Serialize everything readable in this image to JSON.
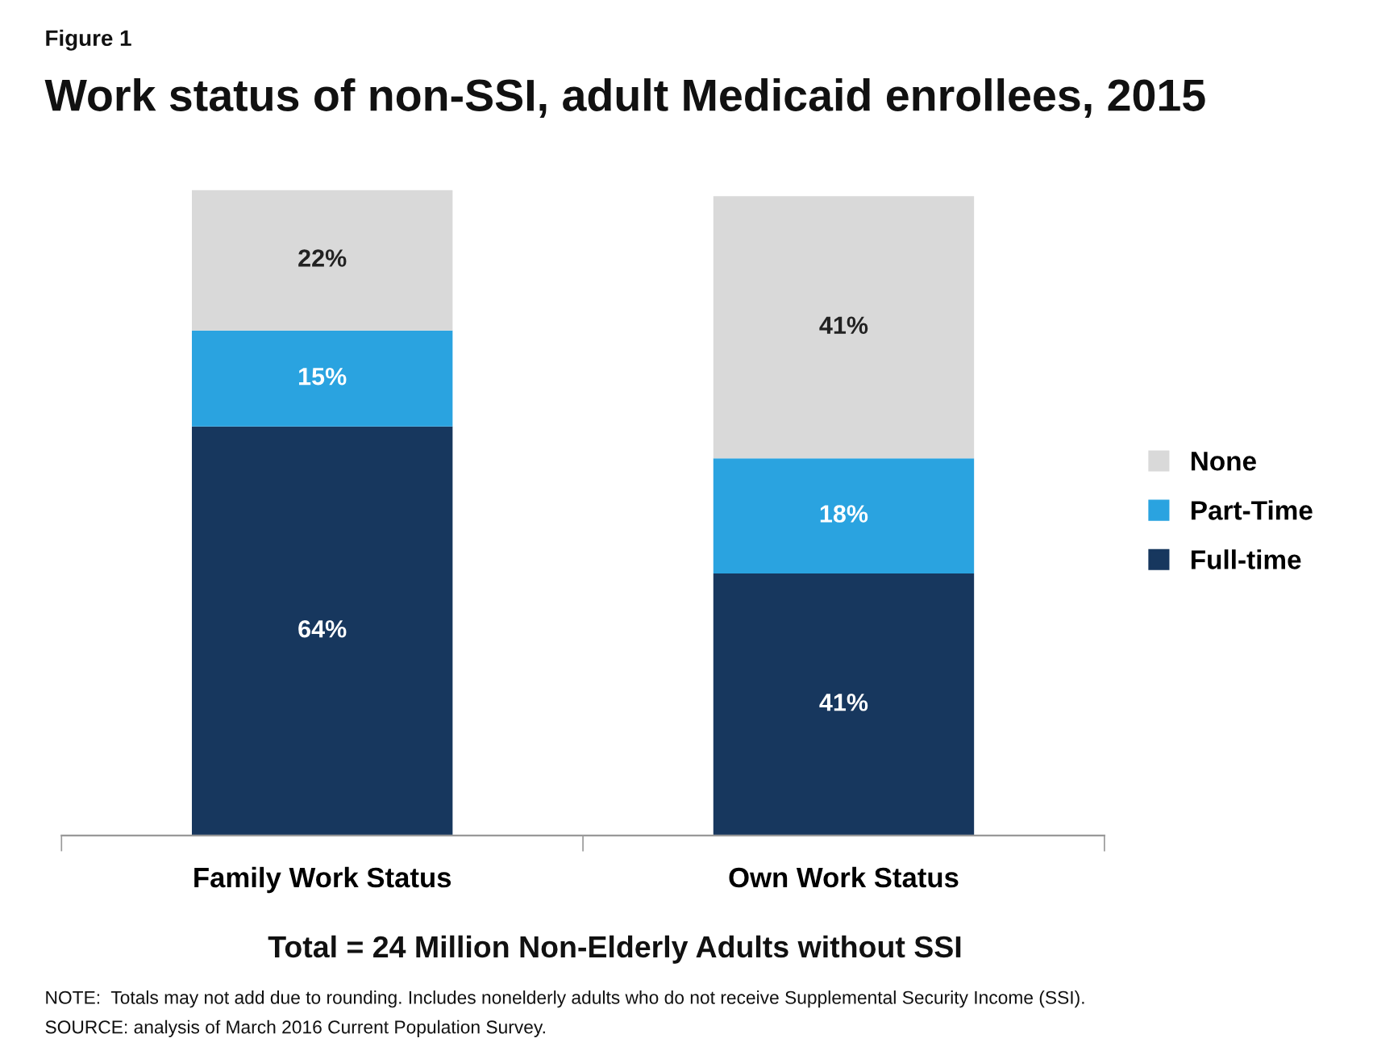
{
  "chart_data": {
    "type": "bar",
    "title": "Work status of non-SSI, adult Medicaid enrollees, 2015",
    "categories": [
      "Family Work Status",
      "Own Work Status"
    ],
    "stacked": true,
    "legend": "right",
    "series": [
      {
        "name": "Full-time",
        "color": "#17375e",
        "values": [
          64,
          41
        ],
        "value_labels": [
          "64%",
          "41%"
        ]
      },
      {
        "name": "Part-Time",
        "color": "#2aa3e0",
        "values": [
          15,
          18
        ],
        "value_labels": [
          "15%",
          "18%"
        ]
      },
      {
        "name": "None",
        "color": "#d9d9d9",
        "values": [
          22,
          41
        ],
        "value_labels": [
          "22%",
          "41%"
        ]
      }
    ],
    "annotations": [
      "Figure 1",
      "Total = 24 Million Non-Elderly Adults without SSI",
      "NOTE:  Totals may not add due to rounding. Includes nonelderly adults who do not receive Supplemental Security Income (SSI).",
      "SOURCE: analysis of March 2016 Current Population Survey."
    ]
  }
}
